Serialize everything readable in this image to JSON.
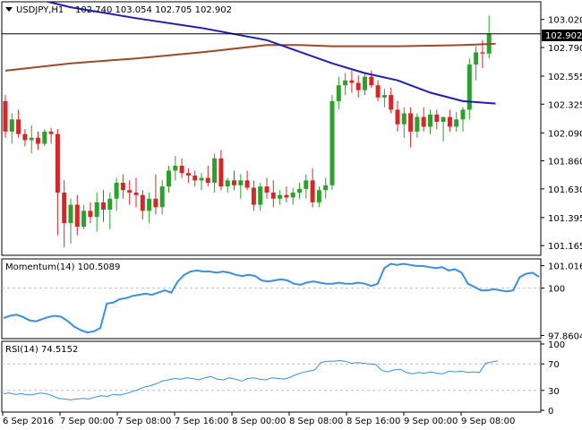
{
  "header": {
    "symbol": "USDJPY,H1",
    "ohlc": "102.740 103.054 102.705 102.902"
  },
  "momentum_label": "Momentum(14) 100.5089",
  "rsi_label": "RSI(14) 74.5152",
  "price_badge": "102.902",
  "colors": {
    "bull": "#2ca02c",
    "bear": "#d62728",
    "sma_fast": "#1f1fb4",
    "sma_slow": "#9b4a2a",
    "indicator": "#3a8fe0",
    "grid": "#bfbfbf",
    "frame": "#000000"
  },
  "x_labels": [
    "6 Sep 2016",
    "7 Sep 00:00",
    "7 Sep 08:00",
    "7 Sep 16:00",
    "8 Sep 00:00",
    "8 Sep 08:00",
    "8 Sep 16:00",
    "9 Sep 00:00",
    "9 Sep 08:00"
  ],
  "chart_data": [
    {
      "type": "candlestick",
      "title": "USDJPY,H1",
      "ylim": [
        101.1,
        103.15
      ],
      "y_ticks": [
        "103.020",
        "102.790",
        "102.555",
        "102.325",
        "102.090",
        "101.860",
        "101.630",
        "101.395",
        "101.165"
      ],
      "x_ticks": [
        "6 Sep 2016",
        "7 Sep 00:00",
        "7 Sep 08:00",
        "7 Sep 16:00",
        "8 Sep 00:00",
        "8 Sep 08:00",
        "8 Sep 16:00",
        "9 Sep 00:00",
        "9 Sep 08:00"
      ],
      "candles": [
        [
          102.35,
          102.4,
          102.05,
          102.1
        ],
        [
          102.1,
          102.25,
          102.0,
          102.2
        ],
        [
          102.2,
          102.28,
          102.05,
          102.08
        ],
        [
          102.08,
          102.12,
          101.98,
          102.03
        ],
        [
          102.03,
          102.15,
          101.92,
          102.05
        ],
        [
          102.05,
          102.1,
          101.95,
          102.0
        ],
        [
          102.0,
          102.12,
          101.98,
          102.1
        ],
        [
          102.1,
          102.13,
          102.0,
          102.08
        ],
        [
          102.08,
          102.12,
          101.25,
          101.6
        ],
        [
          101.6,
          101.7,
          101.15,
          101.35
        ],
        [
          101.35,
          101.55,
          101.18,
          101.5
        ],
        [
          101.5,
          101.58,
          101.25,
          101.32
        ],
        [
          101.32,
          101.5,
          101.3,
          101.45
        ],
        [
          101.45,
          101.52,
          101.35,
          101.4
        ],
        [
          101.4,
          101.6,
          101.28,
          101.52
        ],
        [
          101.52,
          101.62,
          101.36,
          101.46
        ],
        [
          101.46,
          101.6,
          101.3,
          101.55
        ],
        [
          101.55,
          101.72,
          101.45,
          101.68
        ],
        [
          101.68,
          101.75,
          101.55,
          101.62
        ],
        [
          101.62,
          101.7,
          101.5,
          101.6
        ],
        [
          101.6,
          101.72,
          101.48,
          101.58
        ],
        [
          101.58,
          101.62,
          101.38,
          101.45
        ],
        [
          101.45,
          101.6,
          101.35,
          101.55
        ],
        [
          101.55,
          101.75,
          101.42,
          101.48
        ],
        [
          101.48,
          101.7,
          101.42,
          101.65
        ],
        [
          101.65,
          101.82,
          101.6,
          101.78
        ],
        [
          101.78,
          101.9,
          101.7,
          101.82
        ],
        [
          101.82,
          101.88,
          101.72,
          101.76
        ],
        [
          101.76,
          101.8,
          101.68,
          101.74
        ],
        [
          101.74,
          101.78,
          101.65,
          101.7
        ],
        [
          101.7,
          101.76,
          101.62,
          101.72
        ],
        [
          101.72,
          101.82,
          101.65,
          101.68
        ],
        [
          101.68,
          101.92,
          101.6,
          101.88
        ],
        [
          101.88,
          101.95,
          101.62,
          101.65
        ],
        [
          101.65,
          101.72,
          101.6,
          101.7
        ],
        [
          101.7,
          101.78,
          101.62,
          101.66
        ],
        [
          101.66,
          101.75,
          101.55,
          101.7
        ],
        [
          101.7,
          101.78,
          101.62,
          101.64
        ],
        [
          101.64,
          101.7,
          101.45,
          101.5
        ],
        [
          101.5,
          101.68,
          101.45,
          101.65
        ],
        [
          101.65,
          101.72,
          101.55,
          101.6
        ],
        [
          101.6,
          101.7,
          101.48,
          101.55
        ],
        [
          101.55,
          101.62,
          101.5,
          101.58
        ],
        [
          101.58,
          101.65,
          101.52,
          101.56
        ],
        [
          101.56,
          101.64,
          101.5,
          101.6
        ],
        [
          101.6,
          101.68,
          101.55,
          101.63
        ],
        [
          101.63,
          101.75,
          101.55,
          101.7
        ],
        [
          101.7,
          101.8,
          101.48,
          101.52
        ],
        [
          101.52,
          101.65,
          101.48,
          101.62
        ],
        [
          101.62,
          101.72,
          101.55,
          101.66
        ],
        [
          101.66,
          102.4,
          101.62,
          102.35
        ],
        [
          102.35,
          102.55,
          102.28,
          102.48
        ],
        [
          102.48,
          102.58,
          102.4,
          102.52
        ],
        [
          102.52,
          102.6,
          102.42,
          102.5
        ],
        [
          102.5,
          102.56,
          102.38,
          102.44
        ],
        [
          102.44,
          102.58,
          102.4,
          102.55
        ],
        [
          102.55,
          102.6,
          102.46,
          102.48
        ],
        [
          102.48,
          102.52,
          102.35,
          102.38
        ],
        [
          102.38,
          102.45,
          102.3,
          102.4
        ],
        [
          102.4,
          102.46,
          102.25,
          102.28
        ],
        [
          102.28,
          102.35,
          102.1,
          102.16
        ],
        [
          102.16,
          102.3,
          102.05,
          102.25
        ],
        [
          102.25,
          102.3,
          101.97,
          102.1
        ],
        [
          102.1,
          102.25,
          102.05,
          102.22
        ],
        [
          102.22,
          102.3,
          102.1,
          102.14
        ],
        [
          102.14,
          102.28,
          102.08,
          102.24
        ],
        [
          102.24,
          102.28,
          102.12,
          102.18
        ],
        [
          102.18,
          102.22,
          102.02,
          102.22
        ],
        [
          102.22,
          102.28,
          102.1,
          102.14
        ],
        [
          102.14,
          102.26,
          102.1,
          102.2
        ],
        [
          102.2,
          102.3,
          102.1,
          102.28
        ],
        [
          102.28,
          102.7,
          102.2,
          102.65
        ],
        [
          102.65,
          102.8,
          102.52,
          102.75
        ],
        [
          102.75,
          102.85,
          102.62,
          102.74
        ],
        [
          102.74,
          103.05,
          102.7,
          102.9
        ]
      ],
      "sma_fast": [
        [
          0,
          103.25
        ],
        [
          10,
          103.12
        ],
        [
          20,
          103.03
        ],
        [
          30,
          102.95
        ],
        [
          40,
          102.85
        ],
        [
          50,
          102.66
        ],
        [
          55,
          102.58
        ],
        [
          60,
          102.52
        ],
        [
          65,
          102.42
        ],
        [
          70,
          102.35
        ],
        [
          75,
          102.33
        ]
      ],
      "sma_slow": [
        [
          0,
          102.6
        ],
        [
          10,
          102.66
        ],
        [
          20,
          102.7
        ],
        [
          30,
          102.75
        ],
        [
          40,
          102.81
        ],
        [
          45,
          102.81
        ],
        [
          50,
          102.8
        ],
        [
          60,
          102.8
        ],
        [
          70,
          102.81
        ],
        [
          75,
          102.82
        ]
      ],
      "last_price": 102.902
    },
    {
      "type": "line",
      "title": "Momentum(14) 100.5089",
      "ylim": [
        97.8,
        101.2
      ],
      "y_ticks": [
        "101.0166",
        "100",
        "97.8604"
      ],
      "values": [
        98.65,
        98.75,
        98.8,
        98.7,
        98.55,
        98.5,
        98.6,
        98.7,
        98.75,
        98.7,
        98.5,
        98.25,
        98.1,
        98.0,
        98.05,
        98.2,
        99.3,
        99.35,
        99.5,
        99.55,
        99.65,
        99.7,
        99.75,
        99.7,
        99.8,
        99.9,
        99.8,
        100.3,
        100.6,
        100.75,
        100.8,
        100.75,
        100.75,
        100.7,
        100.75,
        100.7,
        100.6,
        100.55,
        100.6,
        100.55,
        100.35,
        100.3,
        100.35,
        100.4,
        100.35,
        100.2,
        100.15,
        100.25,
        100.3,
        100.25,
        100.2,
        100.2,
        100.25,
        100.2,
        100.2,
        100.25,
        100.2,
        100.1,
        100.2,
        100.9,
        101.1,
        101.05,
        101.1,
        101.05,
        101.0,
        101.0,
        100.95,
        100.9,
        100.95,
        100.8,
        100.85,
        100.7,
        100.2,
        100.05,
        99.9,
        99.9,
        99.95,
        99.9,
        99.85,
        99.9,
        100.5,
        100.65,
        100.7,
        100.51
      ]
    },
    {
      "type": "line",
      "title": "RSI(14) 74.5152",
      "ylim": [
        0,
        100
      ],
      "y_ticks": [
        "100",
        "70",
        "30",
        "0"
      ],
      "values": [
        25,
        26,
        24,
        25,
        23,
        24,
        26,
        25,
        22,
        18,
        17,
        16,
        17,
        18,
        17,
        20,
        22,
        21,
        24,
        23,
        25,
        28,
        31,
        35,
        37,
        40,
        44,
        46,
        48,
        47,
        49,
        48,
        46,
        49,
        51,
        47,
        46,
        49,
        47,
        44,
        48,
        49,
        47,
        46,
        49,
        48,
        47,
        50,
        54,
        57,
        59,
        61,
        72,
        74,
        74,
        75,
        74,
        71,
        72,
        71,
        70,
        69,
        60,
        58,
        61,
        62,
        57,
        55,
        57,
        56,
        58,
        56,
        55,
        59,
        58,
        59,
        57,
        58,
        57,
        71,
        73,
        74.5
      ]
    }
  ]
}
